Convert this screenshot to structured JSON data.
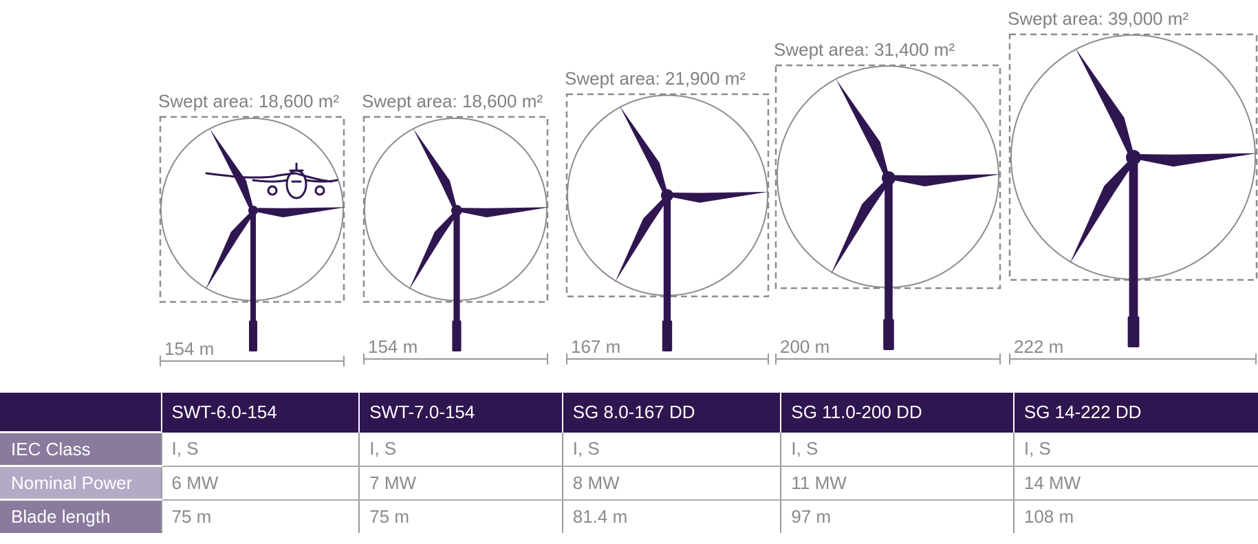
{
  "colors": {
    "turbine": "#301650",
    "header_bg": "#301650",
    "row_label_dark": "#8a7a9e",
    "row_label_light": "#b4a9c6",
    "text_gray": "#808080"
  },
  "turbines": [
    {
      "swept_area": "Swept area: 18,600 m²",
      "diameter": "154 m",
      "airplane": true
    },
    {
      "swept_area": "Swept area: 18,600 m²",
      "diameter": "154 m",
      "airplane": false
    },
    {
      "swept_area": "Swept area: 21,900 m²",
      "diameter": "167 m",
      "airplane": false
    },
    {
      "swept_area": "Swept area: 31,400 m²",
      "diameter": "200 m",
      "airplane": false
    },
    {
      "swept_area": "Swept area: 39,000 m²",
      "diameter": "222 m",
      "airplane": false
    }
  ],
  "table": {
    "models": [
      "SWT-6.0-154",
      "SWT-7.0-154",
      "SG 8.0-167 DD",
      "SG 11.0-200 DD",
      "SG 14-222 DD"
    ],
    "rows": [
      {
        "label": "IEC Class",
        "values": [
          "I, S",
          "I, S",
          "I, S",
          "I, S",
          "I, S"
        ]
      },
      {
        "label": "Nominal Power",
        "values": [
          "6 MW",
          "7 MW",
          "8 MW",
          "11 MW",
          "14 MW"
        ]
      },
      {
        "label": "Blade length",
        "values": [
          "75 m",
          "75 m",
          "81.4 m",
          "97 m",
          "108 m"
        ]
      }
    ]
  }
}
